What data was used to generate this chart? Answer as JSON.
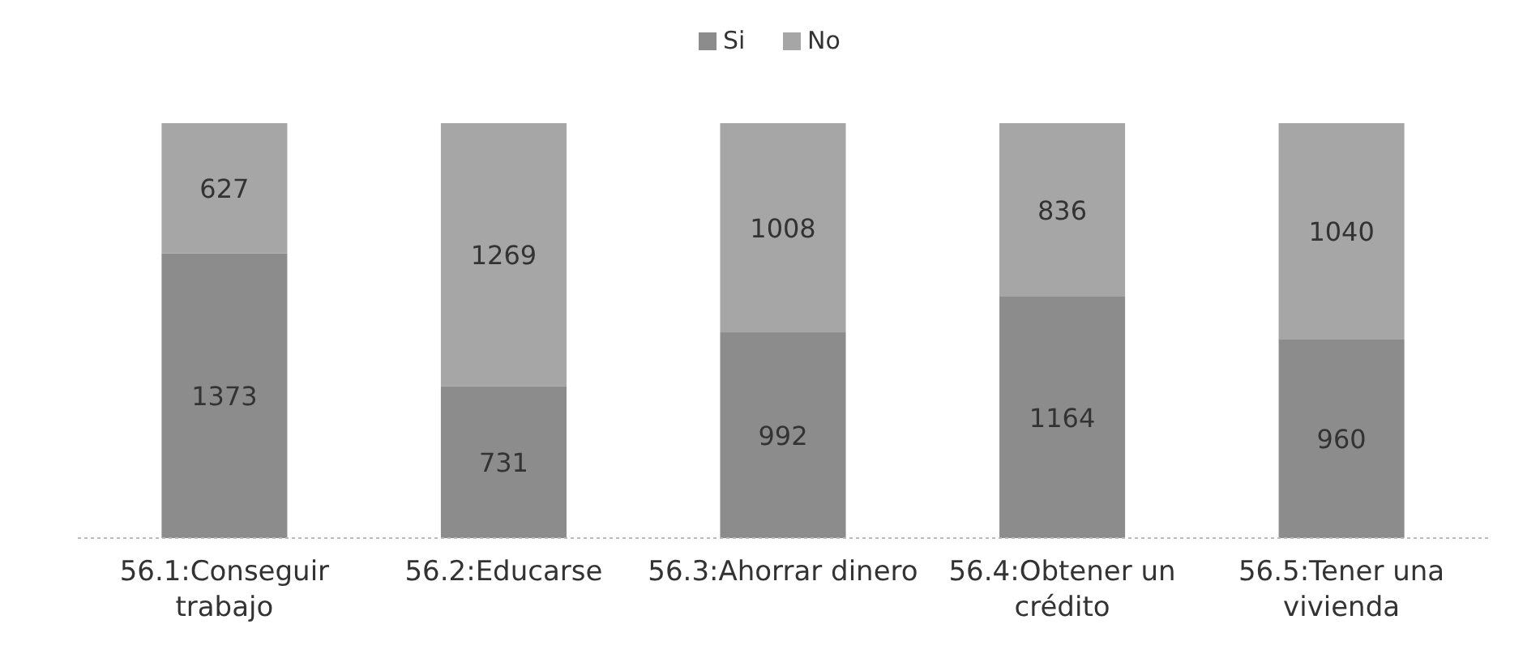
{
  "chart_data": {
    "type": "bar",
    "stacked": true,
    "data_labels": true,
    "legend": "top",
    "categories": [
      "56.1:Conseguir trabajo",
      "56.2:Educarse",
      "56.3:Ahorrar dinero",
      "56.4:Obtener un crédito",
      "56.5:Tener una vivienda"
    ],
    "series": [
      {
        "name": "Si",
        "color": "#8c8c8c",
        "values": [
          1373,
          731,
          992,
          1164,
          960
        ]
      },
      {
        "name": "No",
        "color": "#a6a6a6",
        "values": [
          627,
          1269,
          1008,
          836,
          1040
        ]
      }
    ]
  }
}
